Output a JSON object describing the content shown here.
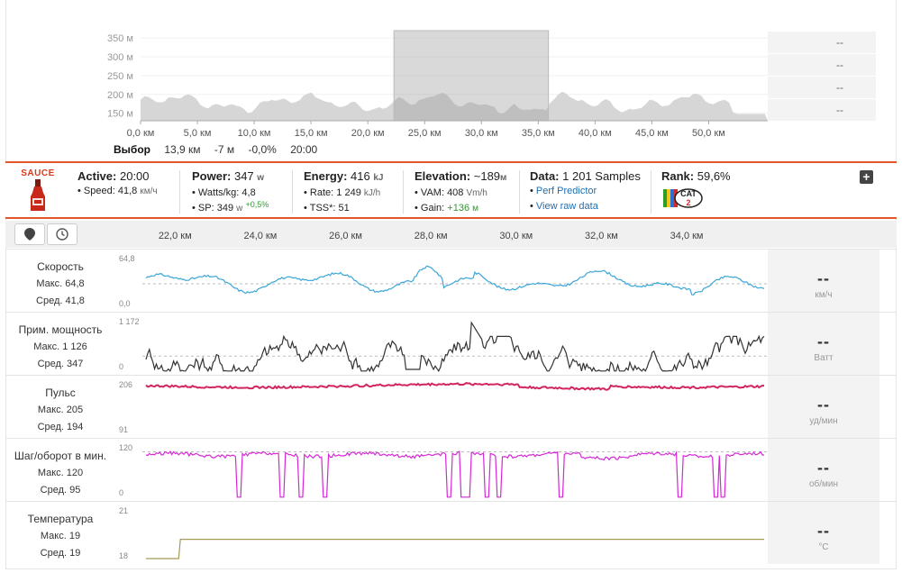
{
  "overview": {
    "y_ticks": [
      "350 м",
      "300 м",
      "250 м",
      "200 м",
      "150 м"
    ],
    "x_ticks": [
      "0,0 км",
      "5,0 км",
      "10,0 км",
      "15,0 км",
      "20,0 км",
      "25,0 км",
      "30,0 км",
      "35,0 км",
      "40,0 км",
      "45,0 км",
      "50,0 км"
    ],
    "side_values": [
      "--",
      "--",
      "--",
      "--"
    ],
    "fill_color": "#d6d6d6",
    "selection_color": "#c8c8c8",
    "selection_range_km": [
      22.3,
      35.9
    ]
  },
  "selection": {
    "label": "Выбор",
    "distance": "13,9 км",
    "elevation": "-7 м",
    "grade": "-0,0%",
    "time": "20:00"
  },
  "sauce": {
    "brand": "SAUCE",
    "accent": "#e2572a",
    "active": {
      "title": "Active:",
      "value": "20:00",
      "speed_label": "Speed:",
      "speed_value": "41,8",
      "speed_unit": "км/ч"
    },
    "power": {
      "title": "Power:",
      "value": "347",
      "unit": "w",
      "wkg_label": "Watts/kg:",
      "wkg_value": "4,8",
      "sp_label": "SP:",
      "sp_value": "349",
      "sp_unit": "w",
      "sp_delta": "+0,5%"
    },
    "energy": {
      "title": "Energy:",
      "value": "416",
      "unit": "kJ",
      "rate_label": "Rate:",
      "rate_value": "1 249",
      "rate_unit": "kJ/h",
      "tss_label": "TSS*:",
      "tss_value": "51"
    },
    "elevation": {
      "title": "Elevation:",
      "value": "~189",
      "unit": "м",
      "vam_label": "VAM:",
      "vam_value": "408",
      "vam_unit": "Vm/h",
      "gain_label": "Gain:",
      "gain_value": "+136",
      "gain_unit": "м"
    },
    "data": {
      "title": "Data:",
      "value": "1 201 Samples",
      "link1": "Perf Predictor",
      "link2": "View raw data"
    },
    "rank": {
      "title": "Rank:",
      "value": "59,6%",
      "badge": "CAT 2"
    },
    "expand_label": "+"
  },
  "axis": {
    "ticks": [
      "22,0 км",
      "24,0 км",
      "26,0 км",
      "28,0 км",
      "30,0 км",
      "32,0 км",
      "34,0 км"
    ]
  },
  "channels": [
    {
      "name": "Скорость",
      "max": "Макс. 64,8",
      "avg": "Сред. 41,8",
      "ymax": "64,8",
      "ymin": "0,0",
      "value": "--",
      "unit": "км/ч",
      "color": "#3aa6d8"
    },
    {
      "name": "Прим. мощность",
      "max": "Макс. 1 126",
      "avg": "Сред. 347",
      "ymax": "1 172",
      "ymin": "0",
      "value": "--",
      "unit": "Ватт",
      "color": "#333333"
    },
    {
      "name": "Пульс",
      "max": "Макс. 205",
      "avg": "Сред. 194",
      "ymax": "206",
      "ymin": "91",
      "value": "--",
      "unit": "уд/мин",
      "color": "#d1265e"
    },
    {
      "name": "Шаг/оборот в мин.",
      "max": "Макс. 120",
      "avg": "Сред. 95",
      "ymax": "120",
      "ymin": "0",
      "value": "--",
      "unit": "об/мин",
      "color": "#d627d6"
    },
    {
      "name": "Температура",
      "max": "Макс. 19",
      "avg": "Сред. 19",
      "ymax": "21",
      "ymin": "18",
      "value": "--",
      "unit": "°C",
      "color": "#a39a55"
    }
  ]
}
